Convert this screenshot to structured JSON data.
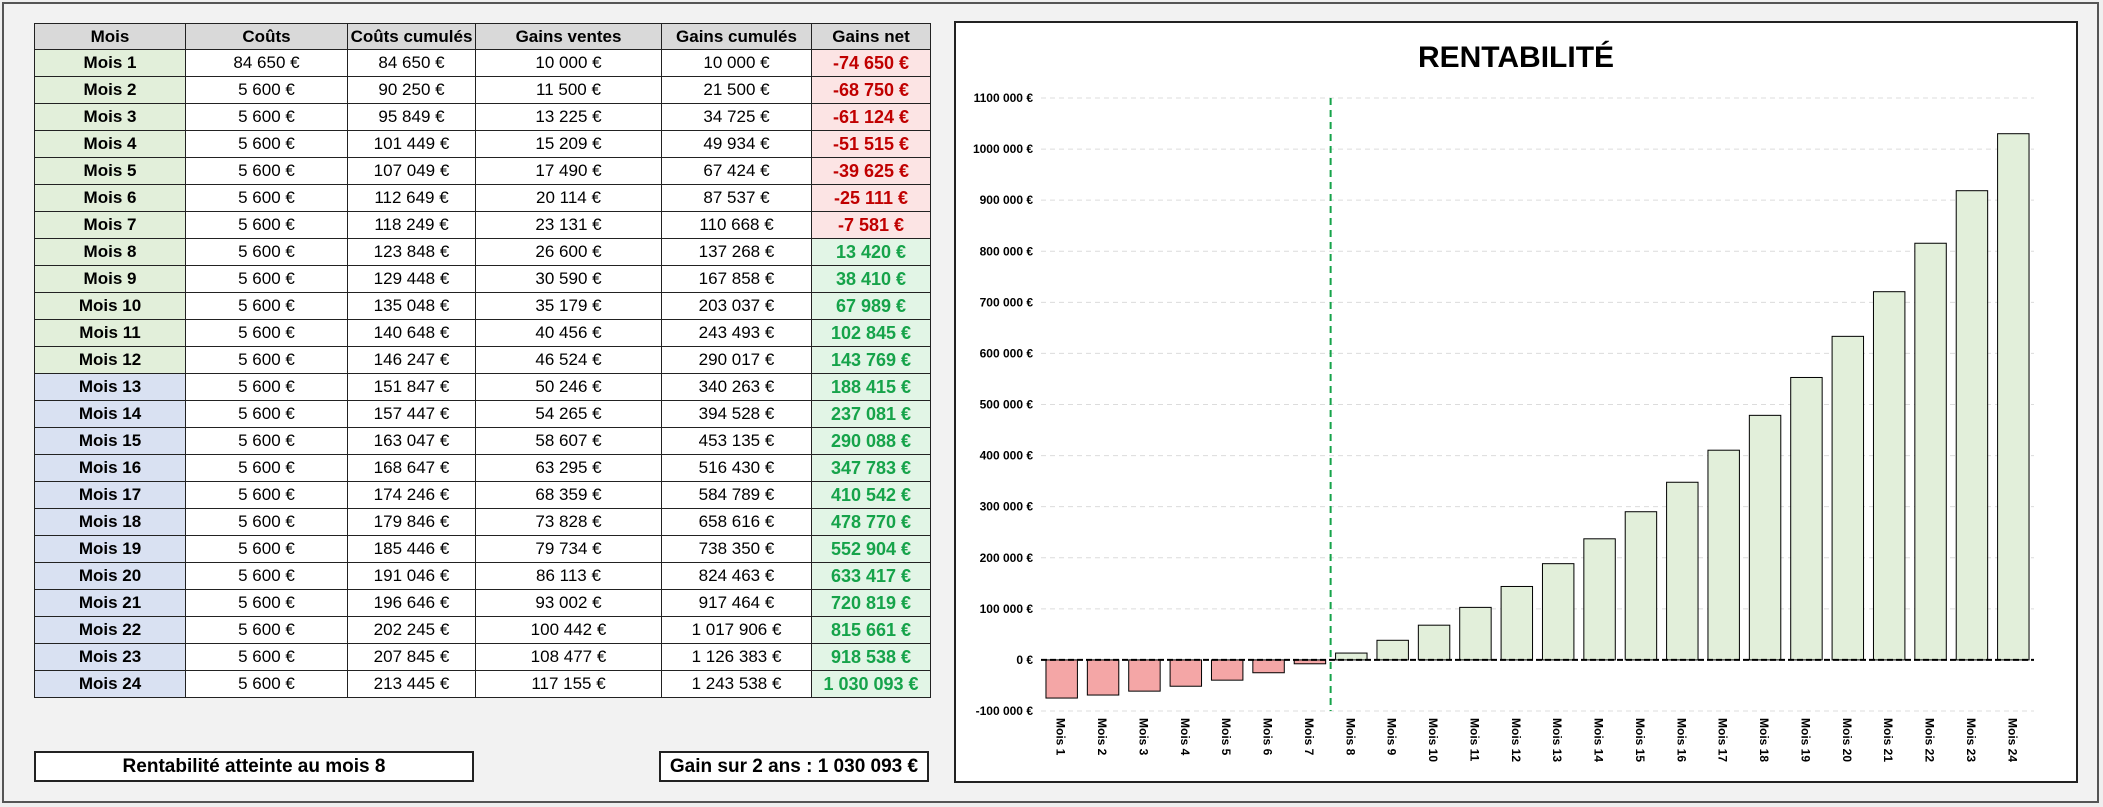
{
  "table": {
    "headers": [
      "Mois",
      "Coûts",
      "Coûts cumulés",
      "Gains ventes",
      "Gains cumulés",
      "Gains net"
    ],
    "rows": [
      [
        "Mois 1",
        "84 650 €",
        "84 650 €",
        "10 000 €",
        "10 000 €",
        "-74 650 €"
      ],
      [
        "Mois 2",
        "5 600 €",
        "90 250 €",
        "11 500 €",
        "21 500 €",
        "-68 750 €"
      ],
      [
        "Mois 3",
        "5 600 €",
        "95 849 €",
        "13 225 €",
        "34 725 €",
        "-61 124 €"
      ],
      [
        "Mois 4",
        "5 600 €",
        "101 449 €",
        "15 209 €",
        "49 934 €",
        "-51 515 €"
      ],
      [
        "Mois 5",
        "5 600 €",
        "107 049 €",
        "17 490 €",
        "67 424 €",
        "-39 625 €"
      ],
      [
        "Mois 6",
        "5 600 €",
        "112 649 €",
        "20 114 €",
        "87 537 €",
        "-25 111 €"
      ],
      [
        "Mois 7",
        "5 600 €",
        "118 249 €",
        "23 131 €",
        "110 668 €",
        "-7 581 €"
      ],
      [
        "Mois 8",
        "5 600 €",
        "123 848 €",
        "26 600 €",
        "137 268 €",
        "13 420 €"
      ],
      [
        "Mois 9",
        "5 600 €",
        "129 448 €",
        "30 590 €",
        "167 858 €",
        "38 410 €"
      ],
      [
        "Mois 10",
        "5 600 €",
        "135 048 €",
        "35 179 €",
        "203 037 €",
        "67 989 €"
      ],
      [
        "Mois 11",
        "5 600 €",
        "140 648 €",
        "40 456 €",
        "243 493 €",
        "102 845 €"
      ],
      [
        "Mois 12",
        "5 600 €",
        "146 247 €",
        "46 524 €",
        "290 017 €",
        "143 769 €"
      ],
      [
        "Mois 13",
        "5 600 €",
        "151 847 €",
        "50 246 €",
        "340 263 €",
        "188 415 €"
      ],
      [
        "Mois 14",
        "5 600 €",
        "157 447 €",
        "54 265 €",
        "394 528 €",
        "237 081 €"
      ],
      [
        "Mois 15",
        "5 600 €",
        "163 047 €",
        "58 607 €",
        "453 135 €",
        "290 088 €"
      ],
      [
        "Mois 16",
        "5 600 €",
        "168 647 €",
        "63 295 €",
        "516 430 €",
        "347 783 €"
      ],
      [
        "Mois 17",
        "5 600 €",
        "174 246 €",
        "68 359 €",
        "584 789 €",
        "410 542 €"
      ],
      [
        "Mois 18",
        "5 600 €",
        "179 846 €",
        "73 828 €",
        "658 616 €",
        "478 770 €"
      ],
      [
        "Mois 19",
        "5 600 €",
        "185 446 €",
        "79 734 €",
        "738 350 €",
        "552 904 €"
      ],
      [
        "Mois 20",
        "5 600 €",
        "191 046 €",
        "86 113 €",
        "824 463 €",
        "633 417 €"
      ],
      [
        "Mois 21",
        "5 600 €",
        "196 646 €",
        "93 002 €",
        "917 464 €",
        "720 819 €"
      ],
      [
        "Mois 22",
        "5 600 €",
        "202 245 €",
        "100 442 €",
        "1 017 906 €",
        "815 661 €"
      ],
      [
        "Mois 23",
        "5 600 €",
        "207 845 €",
        "108 477 €",
        "1 126 383 €",
        "918 538 €"
      ],
      [
        "Mois 24",
        "5 600 €",
        "213 445 €",
        "117 155 €",
        "1 243 538 €",
        "1 030 093 €"
      ]
    ]
  },
  "summary": {
    "rentabilite": "Rentabilité atteinte au mois 8",
    "gain": "Gain sur 2 ans : 1 030 093 €"
  },
  "colors": {
    "negative_bar": "#f4a6a6",
    "positive_bar": "#e2efda",
    "negative_text": "#c00000",
    "positive_text": "#16a34a",
    "breakeven_line": "#16a34a",
    "year1_label_bg": "#e2efda",
    "year2_label_bg": "#d9e1f2"
  },
  "chart_data": {
    "type": "bar",
    "title": "RENTABILITÉ",
    "xlabel": "",
    "ylabel": "",
    "categories": [
      "Mois 1",
      "Mois 2",
      "Mois 3",
      "Mois 4",
      "Mois 5",
      "Mois 6",
      "Mois 7",
      "Mois 8",
      "Mois 9",
      "Mois 10",
      "Mois 11",
      "Mois 12",
      "Mois 13",
      "Mois 14",
      "Mois 15",
      "Mois 16",
      "Mois 17",
      "Mois 18",
      "Mois 19",
      "Mois 20",
      "Mois 21",
      "Mois 22",
      "Mois 23",
      "Mois 24"
    ],
    "values": [
      -74650,
      -68750,
      -61124,
      -51515,
      -39625,
      -25111,
      -7581,
      13420,
      38410,
      67989,
      102845,
      143769,
      188415,
      237081,
      290088,
      347783,
      410542,
      478770,
      552904,
      633417,
      720819,
      815661,
      918538,
      1030093
    ],
    "ylim": [
      -100000,
      1100000
    ],
    "yticks": [
      -100000,
      0,
      100000,
      200000,
      300000,
      400000,
      500000,
      600000,
      700000,
      800000,
      900000,
      1000000,
      1100000
    ],
    "ytick_labels": [
      "-100 000 €",
      "0 €",
      "100 000 €",
      "200 000 €",
      "300 000 €",
      "400 000 €",
      "500 000 €",
      "600 000 €",
      "700 000 €",
      "800 000 €",
      "900 000 €",
      "1000 000 €",
      "1100 000 €"
    ],
    "grid": true,
    "legend": "none",
    "breakeven_marker": "Mois 8"
  }
}
